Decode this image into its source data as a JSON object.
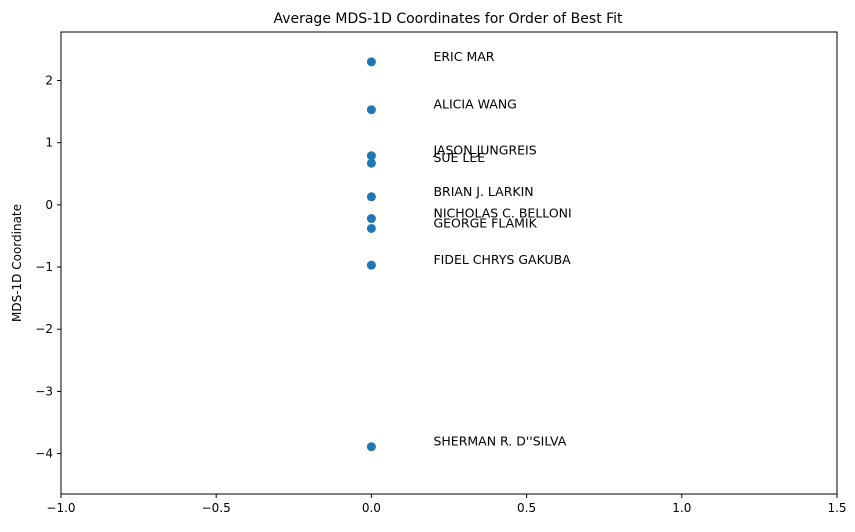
{
  "chart_data": {
    "type": "scatter",
    "title": "Average MDS-1D Coordinates for Order of Best Fit",
    "xlabel": "",
    "ylabel": "MDS-1D Coordinate",
    "xlim": [
      -1.0,
      1.5
    ],
    "ylim": [
      -4.65,
      2.78
    ],
    "grid": false,
    "marker_color": "#1f77b4",
    "x_ticks": [
      {
        "value": -1.0,
        "label": "−1.0"
      },
      {
        "value": -0.5,
        "label": "−0.5"
      },
      {
        "value": 0.0,
        "label": "0.0"
      },
      {
        "value": 0.5,
        "label": "0.5"
      },
      {
        "value": 1.0,
        "label": "1.0"
      },
      {
        "value": 1.5,
        "label": "1.5"
      }
    ],
    "y_ticks": [
      {
        "value": 2,
        "label": "2"
      },
      {
        "value": 1,
        "label": "1"
      },
      {
        "value": 0,
        "label": "0"
      },
      {
        "value": -1,
        "label": "−1"
      },
      {
        "value": -2,
        "label": "−2"
      },
      {
        "value": -3,
        "label": "−3"
      },
      {
        "value": -4,
        "label": "−4"
      }
    ],
    "points": [
      {
        "label": "ERIC MAR",
        "x": 0.0,
        "y": 2.3
      },
      {
        "label": "ALICIA WANG",
        "x": 0.0,
        "y": 1.53
      },
      {
        "label": "JASON JUNGREIS",
        "x": 0.0,
        "y": 0.79
      },
      {
        "label": "SUE LEE",
        "x": 0.0,
        "y": 0.67
      },
      {
        "label": "BRIAN J. LARKIN",
        "x": 0.0,
        "y": 0.13
      },
      {
        "label": "NICHOLAS C. BELLONI",
        "x": 0.0,
        "y": -0.22
      },
      {
        "label": "GEORGE FLAMIK",
        "x": 0.0,
        "y": -0.38
      },
      {
        "label": "FIDEL CHRYS GAKUBA",
        "x": 0.0,
        "y": -0.97
      },
      {
        "label": "SHERMAN R. D''SILVA",
        "x": 0.0,
        "y": -3.89
      }
    ]
  }
}
